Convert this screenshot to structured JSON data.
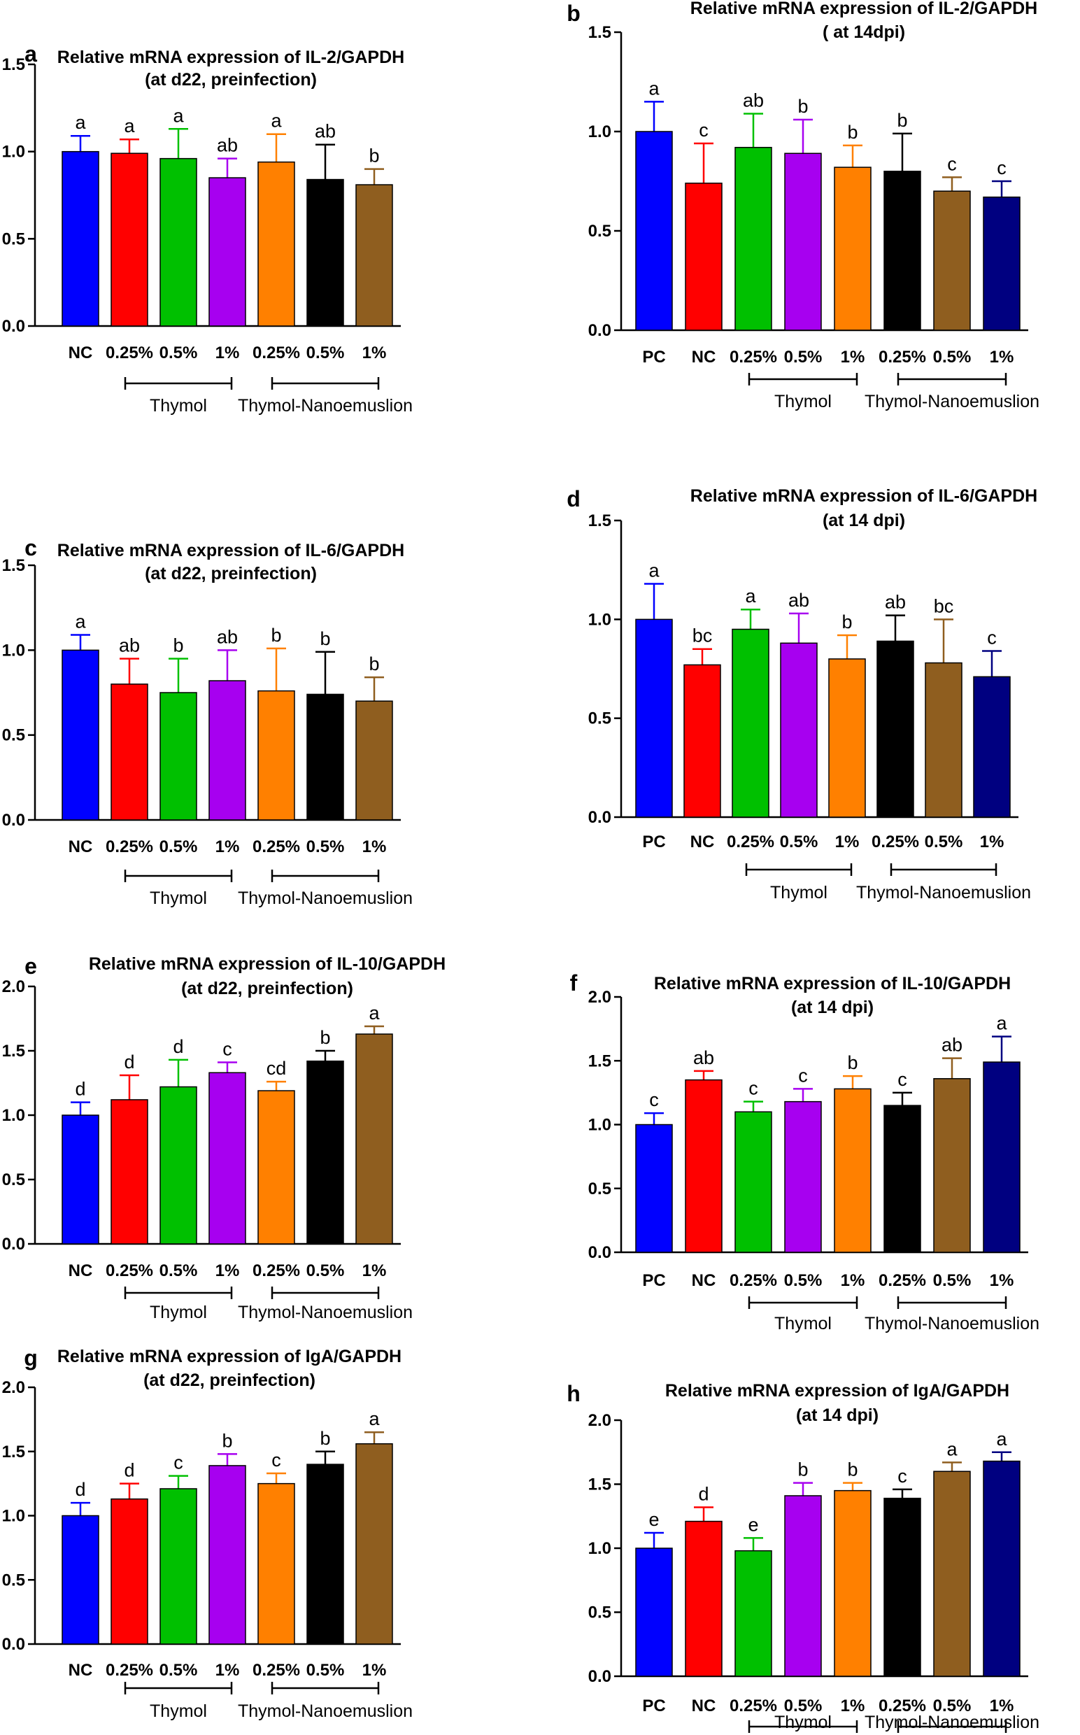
{
  "colors": {
    "PC": "#0000ff",
    "NC": "#ff0000",
    "T025": "#00c000",
    "T05": "#a700f0",
    "T1": "#ff8000",
    "N025": "#000000",
    "N05": "#8f5e1f",
    "N1": "#000080"
  },
  "chart_data": [
    {
      "type": "bar",
      "panel": "a",
      "title": [
        "Relative mRNA expression of IL-2/GAPDH",
        "(at d22, preinfection)"
      ],
      "ylim": [
        0,
        1.5
      ],
      "yticks": [
        "0.0",
        "0.5",
        "1.0",
        "1.5"
      ],
      "categories": [
        "NC",
        "0.25%",
        "0.5%",
        "1%",
        "0.25%",
        "0.5%",
        "1%"
      ],
      "color_keys": [
        "PC",
        "NC",
        "T025",
        "T05",
        "T1",
        "N025",
        "N05"
      ],
      "values": [
        1.0,
        0.99,
        0.96,
        0.85,
        0.94,
        0.84,
        0.81
      ],
      "errors": [
        0.09,
        0.08,
        0.17,
        0.11,
        0.16,
        0.2,
        0.09
      ],
      "letters": [
        "a",
        "a",
        "a",
        "ab",
        "a",
        "ab",
        "b"
      ],
      "groups": [
        {
          "label": "Thymol",
          "from": 1,
          "to": 3
        },
        {
          "label": "Thymol-Nanoemuslion",
          "from": 4,
          "to": 6
        }
      ]
    },
    {
      "type": "bar",
      "panel": "b",
      "title": [
        "Relative mRNA expression of IL-2/GAPDH",
        "( at 14dpi)"
      ],
      "ylim": [
        0,
        1.5
      ],
      "yticks": [
        "0.0",
        "0.5",
        "1.0",
        "1.5"
      ],
      "categories": [
        "PC",
        "NC",
        "0.25%",
        "0.5%",
        "1%",
        "0.25%",
        "0.5%",
        "1%"
      ],
      "color_keys": [
        "PC",
        "NC",
        "T025",
        "T05",
        "T1",
        "N025",
        "N05",
        "N1"
      ],
      "values": [
        1.0,
        0.74,
        0.92,
        0.89,
        0.82,
        0.8,
        0.7,
        0.67
      ],
      "errors": [
        0.15,
        0.2,
        0.17,
        0.17,
        0.11,
        0.19,
        0.07,
        0.08
      ],
      "letters": [
        "a",
        "c",
        "ab",
        "b",
        "b",
        "b",
        "c",
        "c"
      ],
      "groups": [
        {
          "label": "Thymol",
          "from": 2,
          "to": 4
        },
        {
          "label": "Thymol-Nanoemuslion",
          "from": 5,
          "to": 7
        }
      ]
    },
    {
      "type": "bar",
      "panel": "c",
      "title": [
        "Relative mRNA expression of IL-6/GAPDH",
        "(at d22, preinfection)"
      ],
      "ylim": [
        0,
        1.5
      ],
      "yticks": [
        "0.0",
        "0.5",
        "1.0",
        "1.5"
      ],
      "categories": [
        "NC",
        "0.25%",
        "0.5%",
        "1%",
        "0.25%",
        "0.5%",
        "1%"
      ],
      "color_keys": [
        "PC",
        "NC",
        "T025",
        "T05",
        "T1",
        "N025",
        "N05"
      ],
      "values": [
        1.0,
        0.8,
        0.75,
        0.82,
        0.76,
        0.74,
        0.7
      ],
      "errors": [
        0.09,
        0.15,
        0.2,
        0.18,
        0.25,
        0.25,
        0.14
      ],
      "letters": [
        "a",
        "ab",
        "b",
        "ab",
        "b",
        "b",
        "b"
      ],
      "groups": [
        {
          "label": "Thymol",
          "from": 1,
          "to": 3
        },
        {
          "label": "Thymol-Nanoemuslion",
          "from": 4,
          "to": 6
        }
      ]
    },
    {
      "type": "bar",
      "panel": "d",
      "title": [
        "Relative mRNA expression of IL-6/GAPDH",
        "(at 14 dpi)"
      ],
      "ylim": [
        0,
        1.5
      ],
      "yticks": [
        "0.0",
        "0.5",
        "1.0",
        "1.5"
      ],
      "categories": [
        "PC",
        "NC",
        "0.25%",
        "0.5%",
        "1%",
        "0.25%",
        "0.5%",
        "1%"
      ],
      "color_keys": [
        "PC",
        "NC",
        "T025",
        "T05",
        "T1",
        "N025",
        "N05",
        "N1"
      ],
      "values": [
        1.0,
        0.77,
        0.95,
        0.88,
        0.8,
        0.89,
        0.78,
        0.71
      ],
      "errors": [
        0.18,
        0.08,
        0.1,
        0.15,
        0.12,
        0.13,
        0.22,
        0.13
      ],
      "letters": [
        "a",
        "bc",
        "a",
        "ab",
        "b",
        "ab",
        "bc",
        "c"
      ],
      "groups": [
        {
          "label": "Thymol",
          "from": 2,
          "to": 4
        },
        {
          "label": "Thymol-Nanoemuslion",
          "from": 5,
          "to": 7
        }
      ]
    },
    {
      "type": "bar",
      "panel": "e",
      "title": [
        "Relative mRNA expression of IL-10/GAPDH",
        "(at d22, preinfection)"
      ],
      "ylim": [
        0,
        2.0
      ],
      "yticks": [
        "0.0",
        "0.5",
        "1.0",
        "1.5",
        "2.0"
      ],
      "categories": [
        "NC",
        "0.25%",
        "0.5%",
        "1%",
        "0.25%",
        "0.5%",
        "1%"
      ],
      "color_keys": [
        "PC",
        "NC",
        "T025",
        "T05",
        "T1",
        "N025",
        "N05"
      ],
      "values": [
        1.0,
        1.12,
        1.22,
        1.33,
        1.19,
        1.42,
        1.63
      ],
      "errors": [
        0.1,
        0.19,
        0.21,
        0.08,
        0.07,
        0.08,
        0.06
      ],
      "letters": [
        "d",
        "d",
        "d",
        "c",
        "cd",
        "b",
        "a"
      ],
      "groups": [
        {
          "label": "Thymol",
          "from": 1,
          "to": 3
        },
        {
          "label": "Thymol-Nanoemuslion",
          "from": 4,
          "to": 6
        }
      ]
    },
    {
      "type": "bar",
      "panel": "f",
      "title": [
        "Relative mRNA expression of IL-10/GAPDH",
        "(at 14 dpi)"
      ],
      "ylim": [
        0,
        2.0
      ],
      "yticks": [
        "0.0",
        "0.5",
        "1.0",
        "1.5",
        "2.0"
      ],
      "categories": [
        "PC",
        "NC",
        "0.25%",
        "0.5%",
        "1%",
        "0.25%",
        "0.5%",
        "1%"
      ],
      "color_keys": [
        "PC",
        "NC",
        "T025",
        "T05",
        "T1",
        "N025",
        "N05",
        "N1"
      ],
      "values": [
        1.0,
        1.35,
        1.1,
        1.18,
        1.28,
        1.15,
        1.36,
        1.49
      ],
      "errors": [
        0.09,
        0.07,
        0.08,
        0.1,
        0.1,
        0.1,
        0.16,
        0.2
      ],
      "letters": [
        "c",
        "ab",
        "c",
        "c",
        "b",
        "c",
        "ab",
        "a"
      ],
      "groups": [
        {
          "label": "Thymol",
          "from": 2,
          "to": 4
        },
        {
          "label": "Thymol-Nanoemuslion",
          "from": 5,
          "to": 7
        }
      ]
    },
    {
      "type": "bar",
      "panel": "g",
      "title": [
        "Relative mRNA expression of IgA/GAPDH",
        "(at d22, preinfection)"
      ],
      "ylim": [
        0,
        2.0
      ],
      "yticks": [
        "0.0",
        "0.5",
        "1.0",
        "1.5",
        "2.0"
      ],
      "categories": [
        "NC",
        "0.25%",
        "0.5%",
        "1%",
        "0.25%",
        "0.5%",
        "1%"
      ],
      "color_keys": [
        "PC",
        "NC",
        "T025",
        "T05",
        "T1",
        "N025",
        "N05"
      ],
      "values": [
        1.0,
        1.13,
        1.21,
        1.39,
        1.25,
        1.4,
        1.56
      ],
      "errors": [
        0.1,
        0.12,
        0.1,
        0.09,
        0.08,
        0.1,
        0.09
      ],
      "letters": [
        "d",
        "d",
        "c",
        "b",
        "c",
        "b",
        "a"
      ],
      "groups": [
        {
          "label": "Thymol",
          "from": 1,
          "to": 3
        },
        {
          "label": "Thymol-Nanoemuslion",
          "from": 4,
          "to": 6
        }
      ]
    },
    {
      "type": "bar",
      "panel": "h",
      "title": [
        "Relative mRNA expression of IgA/GAPDH",
        "(at 14 dpi)"
      ],
      "ylim": [
        0,
        2.0
      ],
      "yticks": [
        "0.0",
        "0.5",
        "1.0",
        "1.5",
        "2.0"
      ],
      "categories": [
        "PC",
        "NC",
        "0.25%",
        "0.5%",
        "1%",
        "0.25%",
        "0.5%",
        "1%"
      ],
      "color_keys": [
        "PC",
        "NC",
        "T025",
        "T05",
        "T1",
        "N025",
        "N05",
        "N1"
      ],
      "values": [
        1.0,
        1.21,
        0.98,
        1.41,
        1.45,
        1.39,
        1.6,
        1.68
      ],
      "errors": [
        0.12,
        0.11,
        0.1,
        0.1,
        0.06,
        0.07,
        0.07,
        0.07
      ],
      "letters": [
        "e",
        "d",
        "e",
        "b",
        "b",
        "c",
        "a",
        "a"
      ],
      "groups": [
        {
          "label": "Thymol",
          "from": 2,
          "to": 4
        },
        {
          "label": "Thymol-Nanoemuslion",
          "from": 5,
          "to": 7
        }
      ]
    }
  ]
}
